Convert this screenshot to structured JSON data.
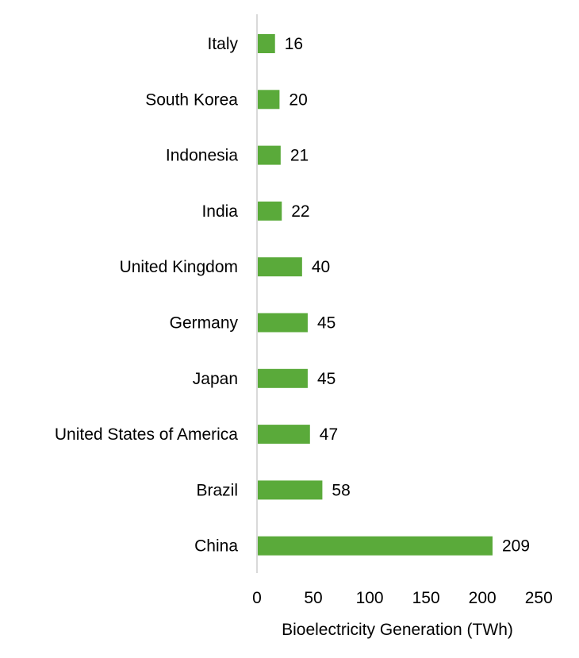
{
  "chart_data": {
    "type": "bar",
    "orientation": "horizontal",
    "title": "",
    "xlabel": "Bioelectricity Generation (TWh)",
    "ylabel": "",
    "categories": [
      "Italy",
      "South Korea",
      "Indonesia",
      "India",
      "United Kingdom",
      "Germany",
      "Japan",
      "United States of America",
      "Brazil",
      "China"
    ],
    "values": [
      16,
      20,
      21,
      22,
      40,
      45,
      45,
      47,
      58,
      209
    ],
    "xlim": [
      0,
      250
    ],
    "xticks": [
      0,
      50,
      100,
      150,
      200,
      250
    ],
    "bar_color": "#5aaa3a",
    "axis_color": "#d9d9d9",
    "grid": false,
    "legend": "none",
    "data_labels": true
  }
}
